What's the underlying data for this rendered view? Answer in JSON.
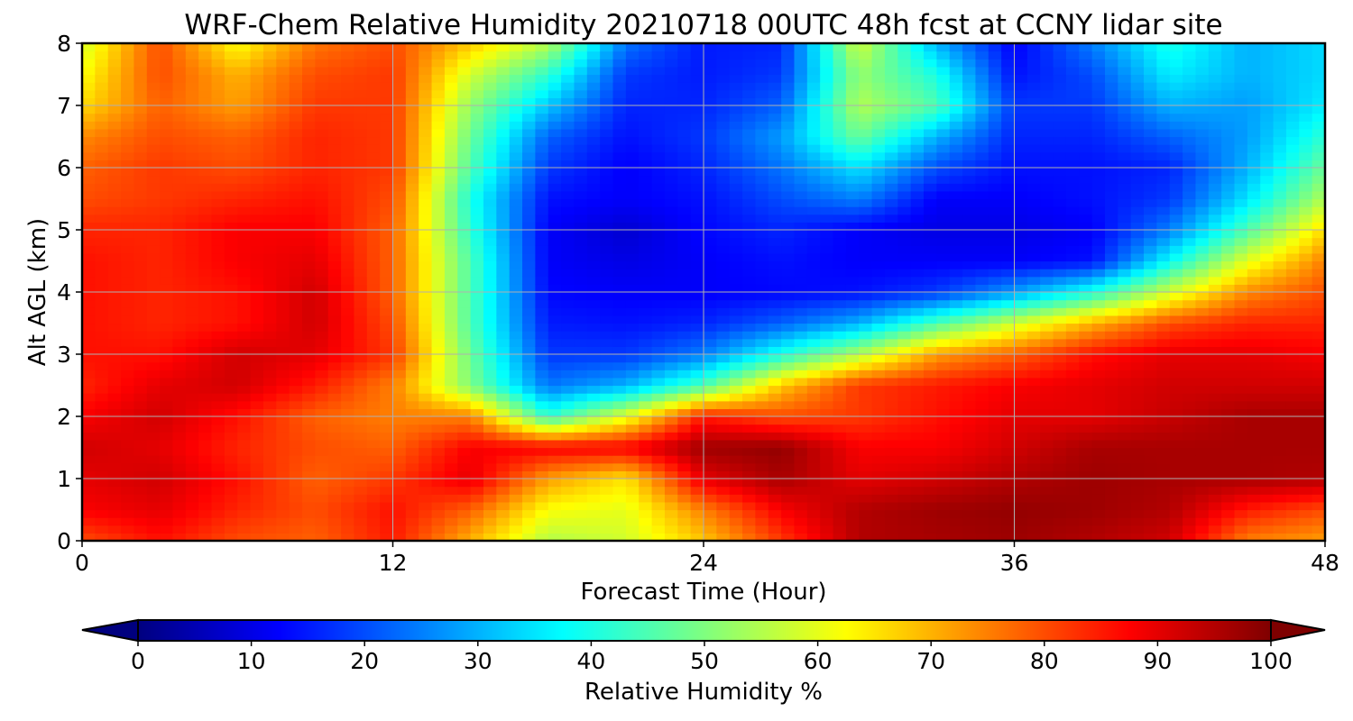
{
  "chart_data": {
    "type": "heatmap",
    "title": "WRF-Chem Relative Humidity 20210718 00UTC 48h fcst at CCNY lidar site",
    "xlabel": "Forecast Time (Hour)",
    "ylabel": "Alt AGL (km)",
    "xlim": [
      0,
      48
    ],
    "ylim": [
      0,
      8
    ],
    "xticks": [
      0,
      12,
      24,
      36,
      48
    ],
    "yticks": [
      0,
      1,
      2,
      3,
      4,
      5,
      6,
      7,
      8
    ],
    "grid": true,
    "colorbar": {
      "label": "Relative Humidity %",
      "ticks": [
        0,
        10,
        20,
        30,
        40,
        50,
        60,
        70,
        80,
        90,
        100
      ],
      "range": [
        0,
        100
      ],
      "colormap": "jet",
      "extend": "both",
      "stops": [
        "#00007f",
        "#0000ff",
        "#007fff",
        "#00ffff",
        "#7fff7f",
        "#ffff00",
        "#ff7f00",
        "#ff0000",
        "#7f0000"
      ]
    },
    "x": [
      0,
      3,
      6,
      9,
      12,
      15,
      18,
      21,
      24,
      27,
      30,
      33,
      36,
      39,
      42,
      45,
      48
    ],
    "y": [
      0,
      0.5,
      1,
      1.5,
      2,
      2.5,
      3,
      3.5,
      4,
      4.5,
      5,
      5.5,
      6,
      6.5,
      7,
      7.5,
      8
    ],
    "z": [
      [
        80,
        86,
        80,
        78,
        85,
        70,
        55,
        58,
        68,
        82,
        95,
        96,
        97,
        95,
        92,
        75,
        72
      ],
      [
        88,
        90,
        84,
        80,
        86,
        78,
        62,
        60,
        75,
        88,
        95,
        97,
        98,
        97,
        95,
        85,
        80
      ],
      [
        90,
        92,
        86,
        78,
        82,
        90,
        72,
        65,
        90,
        96,
        90,
        92,
        95,
        97,
        96,
        96,
        95
      ],
      [
        92,
        90,
        84,
        80,
        78,
        88,
        88,
        88,
        97,
        98,
        88,
        88,
        92,
        96,
        96,
        96,
        96
      ],
      [
        88,
        92,
        86,
        78,
        75,
        75,
        42,
        60,
        85,
        80,
        82,
        86,
        90,
        90,
        93,
        96,
        96
      ],
      [
        84,
        90,
        92,
        85,
        75,
        50,
        24,
        30,
        45,
        68,
        82,
        85,
        88,
        90,
        92,
        92,
        92
      ],
      [
        86,
        86,
        92,
        90,
        82,
        48,
        18,
        18,
        25,
        40,
        55,
        72,
        78,
        86,
        90,
        90,
        88
      ],
      [
        86,
        84,
        86,
        92,
        80,
        45,
        15,
        14,
        16,
        22,
        30,
        45,
        58,
        70,
        80,
        84,
        84
      ],
      [
        86,
        84,
        86,
        92,
        78,
        45,
        13,
        12,
        12,
        13,
        14,
        18,
        28,
        40,
        58,
        74,
        80
      ],
      [
        86,
        84,
        88,
        90,
        78,
        45,
        12,
        10,
        12,
        14,
        12,
        12,
        12,
        14,
        38,
        60,
        75
      ],
      [
        84,
        84,
        88,
        88,
        78,
        42,
        12,
        8,
        13,
        16,
        12,
        10,
        10,
        12,
        25,
        45,
        66
      ],
      [
        80,
        82,
        84,
        86,
        80,
        40,
        14,
        12,
        14,
        20,
        25,
        12,
        12,
        14,
        18,
        35,
        55
      ],
      [
        78,
        82,
        80,
        84,
        82,
        45,
        18,
        12,
        16,
        24,
        35,
        20,
        14,
        14,
        16,
        30,
        48
      ],
      [
        74,
        80,
        78,
        84,
        82,
        48,
        22,
        14,
        18,
        28,
        48,
        30,
        16,
        16,
        22,
        28,
        42
      ],
      [
        66,
        78,
        72,
        82,
        82,
        52,
        32,
        16,
        16,
        22,
        55,
        45,
        18,
        18,
        30,
        28,
        36
      ],
      [
        62,
        80,
        70,
        80,
        82,
        58,
        42,
        18,
        15,
        18,
        52,
        40,
        14,
        20,
        36,
        30,
        34
      ],
      [
        58,
        80,
        62,
        76,
        80,
        68,
        55,
        24,
        15,
        16,
        58,
        30,
        12,
        25,
        40,
        30,
        34
      ]
    ]
  }
}
